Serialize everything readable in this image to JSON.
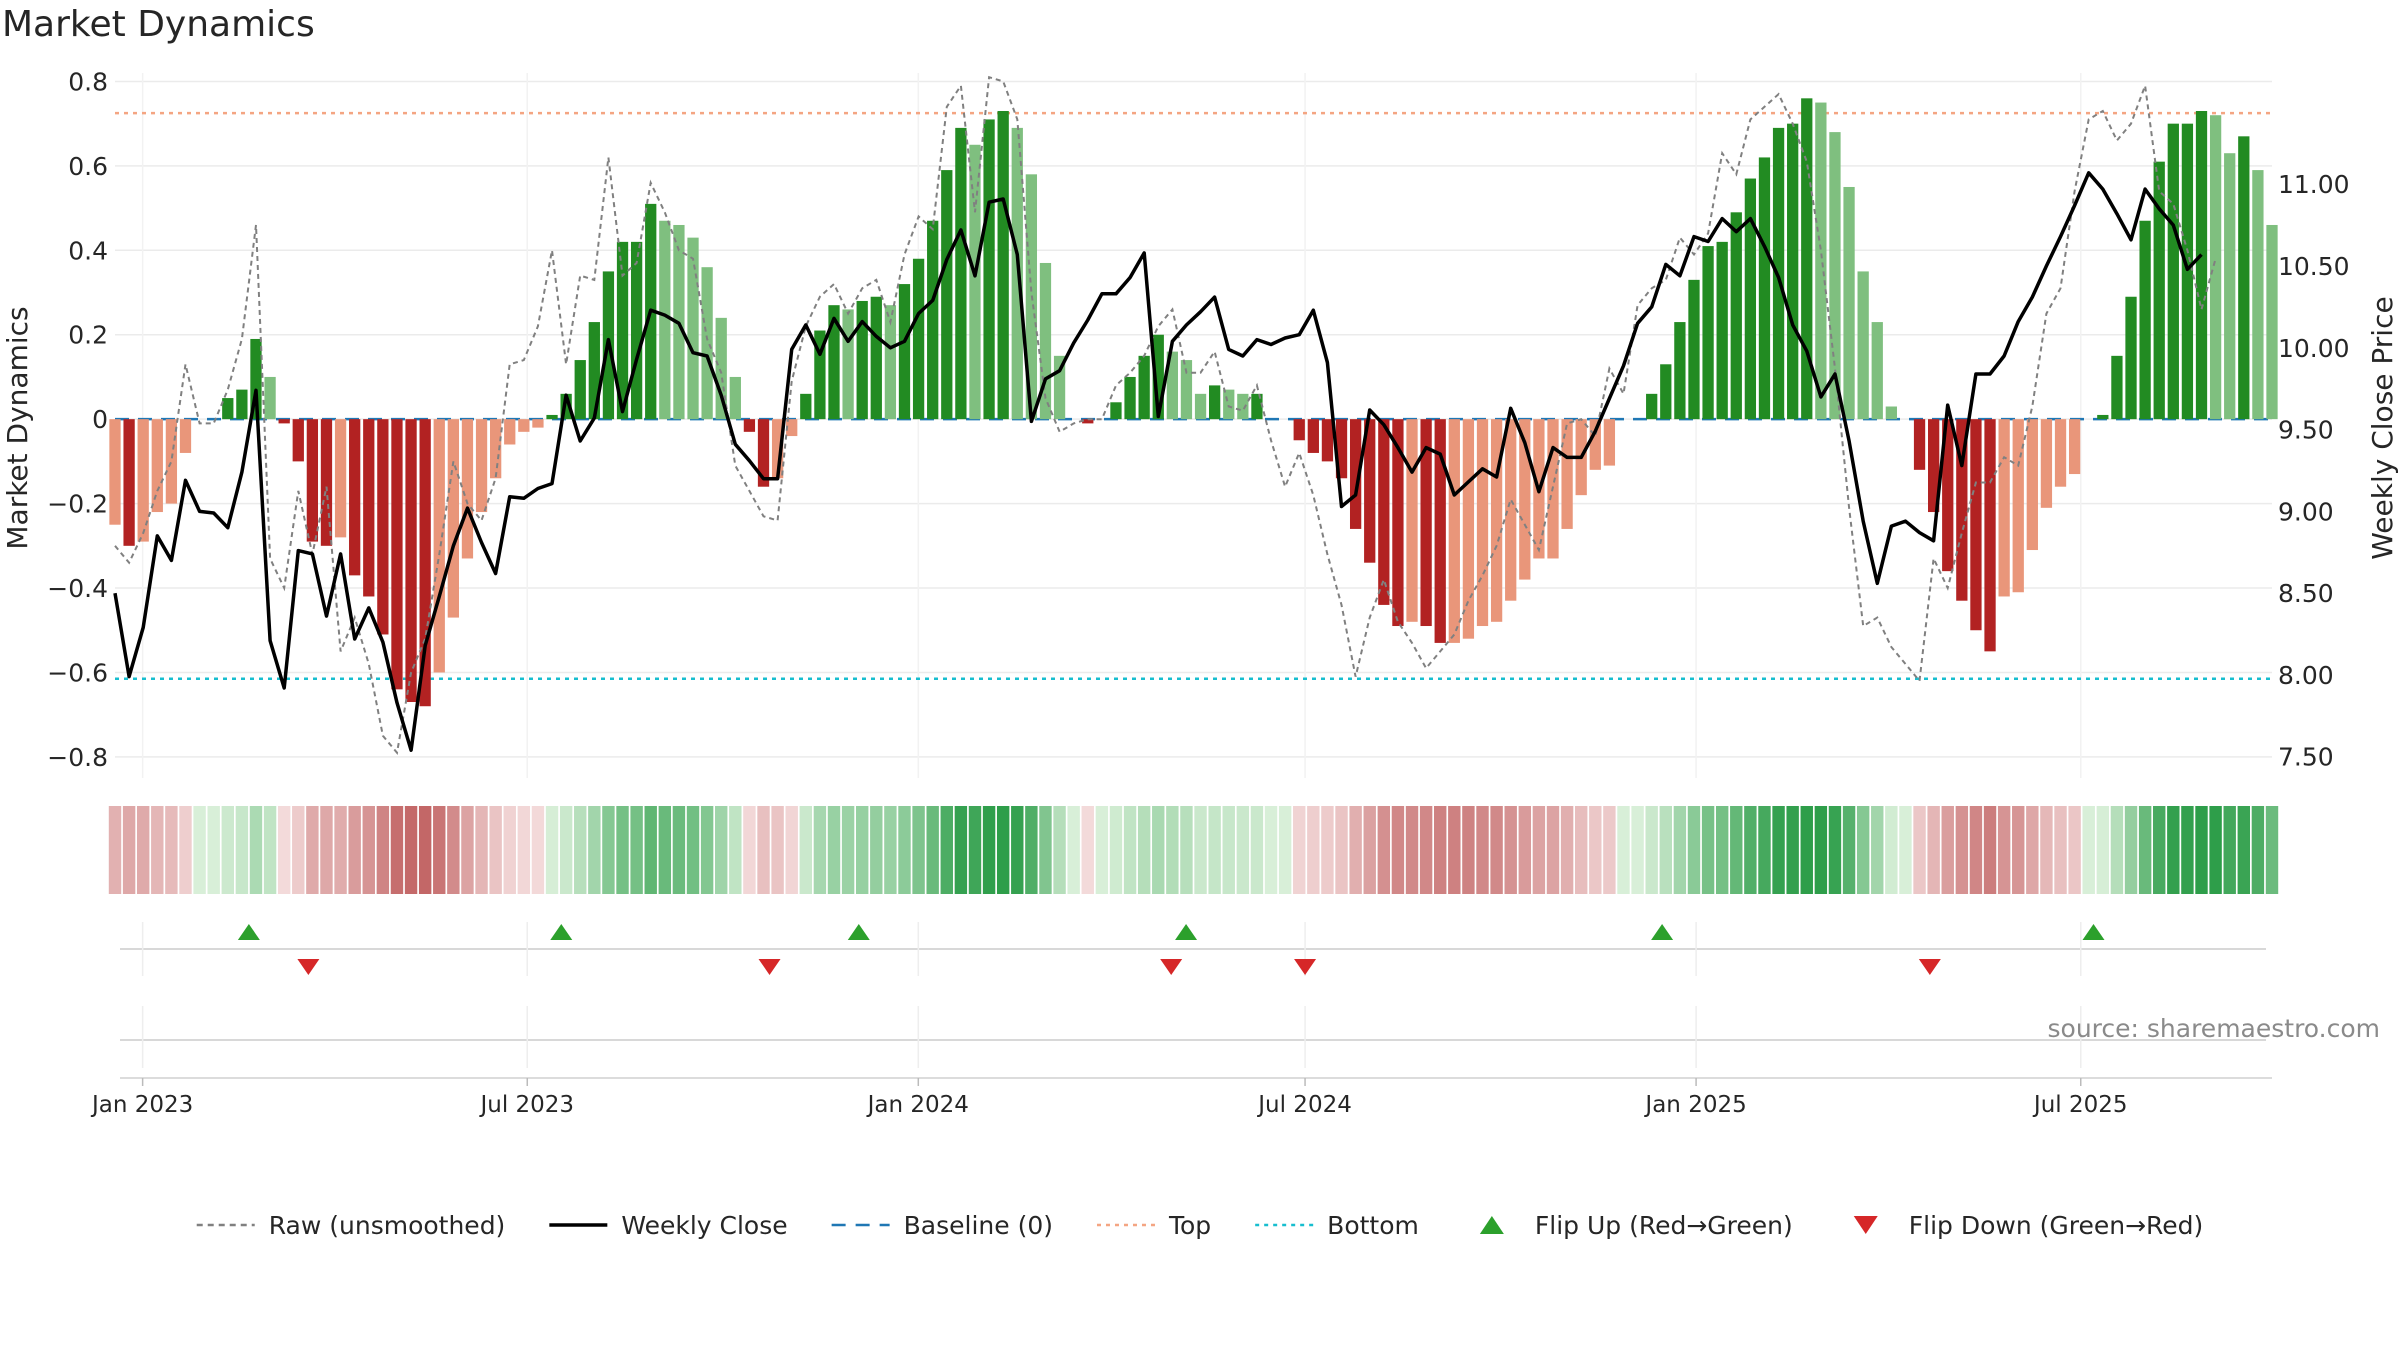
{
  "chart_data": {
    "type": "bar",
    "title": "Market Dynamics",
    "source": "source: sharemaestro.com",
    "ylabel_left": "Market Dynamics",
    "ylabel_right": "Weekly Close Price",
    "left_axis": {
      "ylim": [
        -0.85,
        0.82
      ],
      "ticks": [
        "0.8",
        "0.6",
        "0.4",
        "0.2",
        "0",
        "−0.2",
        "−0.4",
        "−0.6",
        "−0.8"
      ],
      "tick_values": [
        0.8,
        0.6,
        0.4,
        0.2,
        0,
        -0.2,
        -0.4,
        -0.6,
        -0.8
      ]
    },
    "right_axis": {
      "ylim": [
        7.37,
        11.68
      ],
      "ticks": [
        "11.00",
        "10.50",
        "10.00",
        "9.50",
        "9.00",
        "8.50",
        "8.00",
        "7.50"
      ],
      "tick_values": [
        11.0,
        10.5,
        10.0,
        9.5,
        9.0,
        8.5,
        8.0,
        7.5
      ]
    },
    "x_axis": {
      "start": "2022-12-19",
      "end": "2025-09-29",
      "ticks": [
        "Jan 2023",
        "Jul 2023",
        "Jan 2024",
        "Jul 2024",
        "Jan 2025",
        "Jul 2025"
      ],
      "tick_dates": [
        "2023-01-01",
        "2023-07-01",
        "2024-01-01",
        "2024-07-01",
        "2025-01-01",
        "2025-07-01"
      ]
    },
    "reference_lines": {
      "top": 0.725,
      "bottom": -0.615,
      "baseline": 0
    },
    "grid": true,
    "legend_placement": "bottom-center",
    "colors": {
      "strong_up": "#228b22",
      "weak_up": "#7fbf7f",
      "strong_down": "#b22222",
      "weak_down": "#e9967a",
      "price": "#000000",
      "raw": "#808080",
      "baseline": "#1f77b4",
      "top": "#f4a582",
      "bottom": "#17becf",
      "flip_up": "#2ca02c",
      "flip_down": "#d62728"
    },
    "legend": [
      {
        "label": "Raw (unsmoothed)",
        "kind": "dashed",
        "color": "#808080"
      },
      {
        "label": "Weekly Close",
        "kind": "solid",
        "color": "#000000"
      },
      {
        "label": "Baseline (0)",
        "kind": "longdash",
        "color": "#1f77b4"
      },
      {
        "label": "Top",
        "kind": "dotted",
        "color": "#f4a582"
      },
      {
        "label": "Bottom",
        "kind": "dotted",
        "color": "#17becf"
      },
      {
        "label": "Flip Up (Red→Green)",
        "kind": "up",
        "color": "#2ca02c"
      },
      {
        "label": "Flip Down (Green→Red)",
        "kind": "down",
        "color": "#d62728"
      }
    ],
    "flip_up_dates": [
      "2023-02-20",
      "2023-07-17",
      "2023-12-04",
      "2024-05-06",
      "2024-12-16",
      "2025-07-07"
    ],
    "flip_down_dates": [
      "2023-03-20",
      "2023-10-23",
      "2024-04-29",
      "2024-07-01",
      "2025-04-21"
    ],
    "series": [
      {
        "name": "Market Dynamics",
        "values": [
          -0.25,
          -0.3,
          -0.29,
          -0.22,
          -0.2,
          -0.08,
          0.0,
          0.0,
          0.05,
          0.07,
          0.19,
          0.1,
          -0.01,
          -0.1,
          -0.29,
          -0.3,
          -0.28,
          -0.37,
          -0.42,
          -0.51,
          -0.64,
          -0.67,
          -0.68,
          -0.6,
          -0.47,
          -0.33,
          -0.22,
          -0.14,
          -0.06,
          -0.03,
          -0.02,
          0.01,
          0.06,
          0.14,
          0.23,
          0.35,
          0.42,
          0.42,
          0.51,
          0.47,
          0.46,
          0.43,
          0.36,
          0.24,
          0.1,
          -0.03,
          -0.16,
          -0.14,
          -0.04,
          0.06,
          0.21,
          0.27,
          0.26,
          0.28,
          0.29,
          0.27,
          0.32,
          0.38,
          0.47,
          0.59,
          0.69,
          0.65,
          0.71,
          0.73,
          0.69,
          0.58,
          0.37,
          0.15,
          0.0,
          -0.01,
          0.0,
          0.04,
          0.1,
          0.15,
          0.2,
          0.16,
          0.14,
          0.06,
          0.08,
          0.07,
          0.06,
          0.06,
          0.0,
          0.0,
          -0.05,
          -0.08,
          -0.1,
          -0.14,
          -0.26,
          -0.34,
          -0.44,
          -0.49,
          -0.48,
          -0.49,
          -0.53,
          -0.53,
          -0.52,
          -0.49,
          -0.48,
          -0.43,
          -0.38,
          -0.33,
          -0.33,
          -0.26,
          -0.18,
          -0.12,
          -0.11,
          0.0,
          0.0,
          0.06,
          0.13,
          0.23,
          0.33,
          0.41,
          0.42,
          0.49,
          0.57,
          0.62,
          0.69,
          0.7,
          0.76,
          0.75,
          0.68,
          0.55,
          0.35,
          0.23,
          0.03,
          0.0,
          -0.12,
          -0.22,
          -0.36,
          -0.43,
          -0.5,
          -0.55,
          -0.42,
          -0.41,
          -0.31,
          -0.21,
          -0.16,
          -0.13,
          0.0,
          0.01,
          0.15,
          0.29,
          0.47,
          0.61,
          0.7,
          0.7,
          0.73,
          0.72,
          0.63,
          0.67,
          0.59,
          0.46
        ]
      },
      {
        "name": "Raw (unsmoothed)",
        "values": [
          -0.3,
          -0.34,
          -0.27,
          -0.17,
          -0.1,
          0.13,
          -0.01,
          -0.01,
          0.07,
          0.19,
          0.46,
          -0.33,
          -0.4,
          -0.17,
          -0.32,
          -0.16,
          -0.55,
          -0.47,
          -0.58,
          -0.75,
          -0.79,
          -0.6,
          -0.52,
          -0.32,
          -0.1,
          -0.2,
          -0.24,
          -0.14,
          0.13,
          0.14,
          0.22,
          0.4,
          0.13,
          0.34,
          0.33,
          0.62,
          0.34,
          0.37,
          0.56,
          0.49,
          0.4,
          0.38,
          0.19,
          0.11,
          -0.11,
          -0.17,
          -0.23,
          -0.24,
          0.09,
          0.22,
          0.29,
          0.32,
          0.25,
          0.31,
          0.33,
          0.23,
          0.39,
          0.48,
          0.45,
          0.74,
          0.79,
          0.49,
          0.81,
          0.8,
          0.71,
          0.3,
          0.05,
          -0.03,
          -0.01,
          0.0,
          0.0,
          0.08,
          0.11,
          0.15,
          0.22,
          0.26,
          0.11,
          0.11,
          0.16,
          0.03,
          0.02,
          0.08,
          -0.05,
          -0.16,
          -0.08,
          -0.18,
          -0.32,
          -0.44,
          -0.61,
          -0.47,
          -0.38,
          -0.48,
          -0.53,
          -0.59,
          -0.55,
          -0.51,
          -0.43,
          -0.37,
          -0.3,
          -0.19,
          -0.25,
          -0.31,
          -0.16,
          -0.01,
          0.0,
          -0.04,
          0.12,
          0.06,
          0.27,
          0.31,
          0.33,
          0.43,
          0.39,
          0.44,
          0.63,
          0.58,
          0.71,
          0.74,
          0.77,
          0.7,
          0.61,
          0.4,
          0.12,
          -0.21,
          -0.49,
          -0.47,
          -0.54,
          -0.58,
          -0.62,
          -0.33,
          -0.4,
          -0.27,
          -0.15,
          -0.15,
          -0.09,
          -0.11,
          0.03,
          0.25,
          0.31,
          0.54,
          0.71,
          0.73,
          0.66,
          0.7,
          0.79,
          0.54,
          0.51,
          0.4,
          0.26,
          0.38
        ]
      },
      {
        "name": "Weekly Close",
        "values": [
          8.5,
          7.99,
          8.29,
          8.85,
          8.7,
          9.19,
          9.0,
          8.99,
          8.9,
          9.24,
          9.74,
          8.21,
          7.92,
          8.76,
          8.74,
          8.36,
          8.74,
          8.22,
          8.41,
          8.2,
          7.83,
          7.54,
          8.18,
          8.48,
          8.79,
          9.02,
          8.81,
          8.62,
          9.09,
          9.08,
          9.14,
          9.17,
          9.71,
          9.43,
          9.57,
          10.05,
          9.61,
          9.93,
          10.23,
          10.2,
          10.15,
          9.97,
          9.95,
          9.71,
          9.41,
          9.31,
          9.2,
          9.2,
          9.99,
          10.14,
          9.96,
          10.18,
          10.04,
          10.16,
          10.07,
          10.0,
          10.04,
          10.21,
          10.29,
          10.54,
          10.72,
          10.44,
          10.89,
          10.91,
          10.57,
          9.55,
          9.81,
          9.86,
          10.03,
          10.17,
          10.33,
          10.33,
          10.43,
          10.58,
          9.58,
          10.04,
          10.14,
          10.22,
          10.31,
          9.99,
          9.95,
          10.05,
          10.02,
          10.06,
          10.08,
          10.23,
          9.91,
          9.03,
          9.1,
          9.62,
          9.53,
          9.39,
          9.24,
          9.39,
          9.35,
          9.1,
          9.18,
          9.26,
          9.21,
          9.63,
          9.42,
          9.12,
          9.39,
          9.33,
          9.33,
          9.49,
          9.69,
          9.89,
          10.15,
          10.25,
          10.51,
          10.44,
          10.68,
          10.65,
          10.79,
          10.71,
          10.79,
          10.62,
          10.43,
          10.14,
          9.98,
          9.7,
          9.84,
          9.43,
          8.94,
          8.56,
          8.91,
          8.94,
          8.87,
          8.82,
          9.65,
          9.28,
          9.84,
          9.84,
          9.95,
          10.16,
          10.31,
          10.5,
          10.68,
          10.87,
          11.07,
          10.97,
          10.82,
          10.66,
          10.97,
          10.85,
          10.75,
          10.48,
          10.57
        ]
      }
    ],
    "heat_strip": [
      -0.25,
      -0.3,
      -0.29,
      -0.22,
      -0.2,
      -0.08,
      0.0,
      0.0,
      0.05,
      0.07,
      0.19,
      0.1,
      -0.01,
      -0.1,
      -0.29,
      -0.3,
      -0.28,
      -0.37,
      -0.42,
      -0.51,
      -0.64,
      -0.67,
      -0.68,
      -0.6,
      -0.47,
      -0.33,
      -0.22,
      -0.14,
      -0.06,
      -0.03,
      -0.02,
      0.01,
      0.06,
      0.14,
      0.23,
      0.35,
      0.42,
      0.42,
      0.51,
      0.47,
      0.46,
      0.43,
      0.36,
      0.24,
      0.1,
      -0.03,
      -0.16,
      -0.14,
      -0.04,
      0.06,
      0.21,
      0.27,
      0.26,
      0.28,
      0.29,
      0.27,
      0.32,
      0.38,
      0.47,
      0.59,
      0.69,
      0.65,
      0.71,
      0.73,
      0.69,
      0.58,
      0.37,
      0.15,
      0.0,
      -0.01,
      0.0,
      0.04,
      0.1,
      0.15,
      0.2,
      0.16,
      0.14,
      0.06,
      0.08,
      0.07,
      0.06,
      0.06,
      0.0,
      0.0,
      -0.05,
      -0.08,
      -0.1,
      -0.14,
      -0.26,
      -0.34,
      -0.44,
      -0.49,
      -0.48,
      -0.49,
      -0.53,
      -0.53,
      -0.52,
      -0.49,
      -0.48,
      -0.43,
      -0.38,
      -0.33,
      -0.33,
      -0.26,
      -0.18,
      -0.12,
      -0.11,
      0.0,
      0.0,
      0.06,
      0.13,
      0.23,
      0.33,
      0.41,
      0.42,
      0.49,
      0.57,
      0.62,
      0.69,
      0.7,
      0.76,
      0.75,
      0.68,
      0.55,
      0.35,
      0.23,
      0.03,
      0.0,
      -0.12,
      -0.22,
      -0.36,
      -0.43,
      -0.5,
      -0.55,
      -0.42,
      -0.41,
      -0.31,
      -0.21,
      -0.16,
      -0.13,
      0.0,
      0.01,
      0.15,
      0.29,
      0.47,
      0.61,
      0.7,
      0.7,
      0.73,
      0.72,
      0.63,
      0.67,
      0.59,
      0.46
    ]
  }
}
